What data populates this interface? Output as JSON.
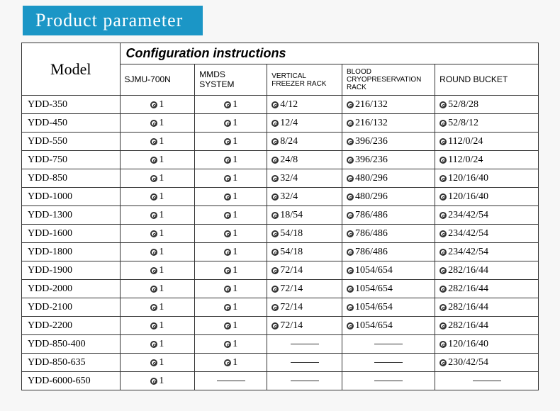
{
  "title": "Product parameter",
  "title_bg": "#1b96c6",
  "headers": {
    "model": "Model",
    "config": "Configuration instructions",
    "cols": [
      "SJMU-700N",
      "MMDS SYSTEM",
      "VERTICAL FREEZER RACK",
      "BLOOD CRYOPRESERVATION RACK",
      "ROUND BUCKET"
    ]
  },
  "col_widths_pct": [
    19,
    14.5,
    14,
    14.5,
    18,
    20
  ],
  "rows": [
    {
      "model": "YDD-350",
      "v": [
        "1",
        "1",
        "4/12",
        "216/132",
        "52/8/28"
      ]
    },
    {
      "model": "YDD-450",
      "v": [
        "1",
        "1",
        "12/4",
        "216/132",
        "52/8/12"
      ]
    },
    {
      "model": "YDD-550",
      "v": [
        "1",
        "1",
        "8/24",
        "396/236",
        "112/0/24"
      ]
    },
    {
      "model": "YDD-750",
      "v": [
        "1",
        "1",
        "24/8",
        "396/236",
        "112/0/24"
      ]
    },
    {
      "model": "YDD-850",
      "v": [
        "1",
        "1",
        "32/4",
        "480/296",
        "120/16/40"
      ]
    },
    {
      "model": "YDD-1000",
      "v": [
        "1",
        "1",
        "32/4",
        "480/296",
        "120/16/40"
      ]
    },
    {
      "model": "YDD-1300",
      "v": [
        "1",
        "1",
        "18/54",
        "786/486",
        "234/42/54"
      ]
    },
    {
      "model": "YDD-1600",
      "v": [
        "1",
        "1",
        "54/18",
        "786/486",
        "234/42/54"
      ]
    },
    {
      "model": "YDD-1800",
      "v": [
        "1",
        "1",
        "54/18",
        "786/486",
        "234/42/54"
      ]
    },
    {
      "model": "YDD-1900",
      "v": [
        "1",
        "1",
        "72/14",
        "1054/654",
        "282/16/44"
      ]
    },
    {
      "model": "YDD-2000",
      "v": [
        "1",
        "1",
        "72/14",
        "1054/654",
        "282/16/44"
      ]
    },
    {
      "model": "YDD-2100",
      "v": [
        "1",
        "1",
        "72/14",
        "1054/654",
        "282/16/44"
      ]
    },
    {
      "model": "YDD-2200",
      "v": [
        "1",
        "1",
        "72/14",
        "1054/654",
        "282/16/44"
      ]
    },
    {
      "model": "YDD-850-400",
      "v": [
        "1",
        "1",
        "",
        "",
        "120/16/40"
      ]
    },
    {
      "model": "YDD-850-635",
      "v": [
        "1",
        "1",
        "",
        "",
        "230/42/54"
      ]
    },
    {
      "model": "YDD-6000-650",
      "v": [
        "1",
        "",
        "",
        "",
        ""
      ]
    }
  ]
}
